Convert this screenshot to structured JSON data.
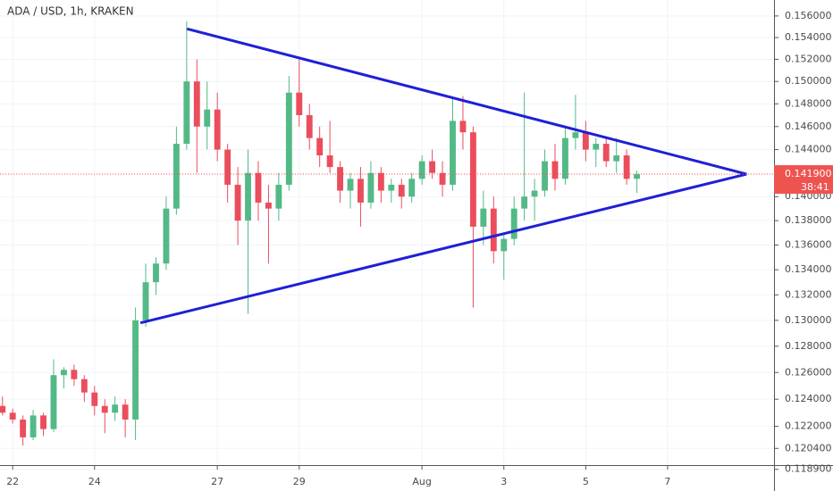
{
  "chart_data": {
    "type": "candlestick",
    "title": "ADA / USD, 1h, KRAKEN",
    "log_scale": true,
    "grid": true,
    "up_color": "#53b987",
    "down_color": "#eb4d5c",
    "x": [
      -0.25,
      0,
      0.25,
      0.5,
      0.75,
      1,
      1.25,
      1.5,
      1.75,
      2,
      2.25,
      2.5,
      2.75,
      3,
      3.25,
      3.5,
      3.75,
      4,
      4.25,
      4.5,
      4.75,
      5,
      5.25,
      5.5,
      5.75,
      6,
      6.25,
      6.5,
      6.75,
      7,
      7.25,
      7.5,
      7.75,
      8,
      8.25,
      8.5,
      8.75,
      9,
      9.25,
      9.5,
      9.75,
      10,
      10.25,
      10.5,
      10.75,
      11,
      11.25,
      11.5,
      11.75,
      12,
      12.25,
      12.5,
      12.75,
      13,
      13.25,
      13.5,
      13.75,
      14,
      14.25,
      14.5,
      14.75,
      15,
      15.25
    ],
    "open": [
      0.1235,
      0.123,
      0.1225,
      0.1212,
      0.1228,
      0.1218,
      0.1258,
      0.1262,
      0.1255,
      0.1245,
      0.1235,
      0.123,
      0.1236,
      0.1225,
      0.13,
      0.133,
      0.1345,
      0.139,
      0.1445,
      0.15,
      0.146,
      0.1475,
      0.144,
      0.141,
      0.138,
      0.142,
      0.1395,
      0.139,
      0.141,
      0.149,
      0.147,
      0.145,
      0.1435,
      0.1425,
      0.1405,
      0.1415,
      0.1395,
      0.142,
      0.1405,
      0.141,
      0.14,
      0.1415,
      0.143,
      0.142,
      0.141,
      0.1465,
      0.1455,
      0.1375,
      0.139,
      0.1355,
      0.1365,
      0.139,
      0.14,
      0.1405,
      0.143,
      0.1415,
      0.145,
      0.1455,
      0.144,
      0.1445,
      0.143,
      0.1435,
      0.1415
    ],
    "high": [
      0.1242,
      0.1233,
      0.1228,
      0.1232,
      0.123,
      0.127,
      0.1264,
      0.1266,
      0.1258,
      0.125,
      0.124,
      0.1242,
      0.124,
      0.131,
      0.1345,
      0.135,
      0.14,
      0.146,
      0.1555,
      0.152,
      0.15,
      0.149,
      0.1445,
      0.1425,
      0.144,
      0.143,
      0.141,
      0.142,
      0.1505,
      0.152,
      0.148,
      0.146,
      0.1465,
      0.143,
      0.142,
      0.1425,
      0.143,
      0.1425,
      0.1415,
      0.1415,
      0.142,
      0.1435,
      0.144,
      0.143,
      0.1485,
      0.1487,
      0.146,
      0.1405,
      0.14,
      0.137,
      0.14,
      0.149,
      0.1415,
      0.144,
      0.1445,
      0.146,
      0.1488,
      0.1465,
      0.145,
      0.145,
      0.145,
      0.144,
      0.1422
    ],
    "low": [
      0.1228,
      0.1222,
      0.1206,
      0.121,
      0.1213,
      0.1216,
      0.1248,
      0.125,
      0.1238,
      0.1228,
      0.1215,
      0.1224,
      0.1212,
      0.121,
      0.1295,
      0.132,
      0.134,
      0.1385,
      0.144,
      0.142,
      0.144,
      0.143,
      0.1395,
      0.136,
      0.1305,
      0.138,
      0.1345,
      0.138,
      0.1405,
      0.146,
      0.144,
      0.1425,
      0.142,
      0.1395,
      0.139,
      0.1375,
      0.139,
      0.1395,
      0.1395,
      0.139,
      0.1395,
      0.141,
      0.1415,
      0.14,
      0.1405,
      0.144,
      0.131,
      0.136,
      0.1345,
      0.1332,
      0.136,
      0.138,
      0.138,
      0.14,
      0.1405,
      0.141,
      0.144,
      0.143,
      0.1425,
      0.1425,
      0.142,
      0.141,
      0.1403
    ],
    "close": [
      0.123,
      0.1225,
      0.1212,
      0.1228,
      0.1218,
      0.1258,
      0.1262,
      0.1255,
      0.1245,
      0.1235,
      0.123,
      0.1236,
      0.1225,
      0.13,
      0.133,
      0.1345,
      0.139,
      0.1445,
      0.15,
      0.146,
      0.1475,
      0.144,
      0.141,
      0.138,
      0.142,
      0.1395,
      0.139,
      0.141,
      0.149,
      0.147,
      0.145,
      0.1435,
      0.1425,
      0.1405,
      0.1415,
      0.1395,
      0.142,
      0.1405,
      0.141,
      0.14,
      0.1415,
      0.143,
      0.142,
      0.141,
      0.1465,
      0.1455,
      0.1375,
      0.139,
      0.1355,
      0.1365,
      0.139,
      0.14,
      0.1405,
      0.143,
      0.1415,
      0.145,
      0.1455,
      0.144,
      0.1445,
      0.143,
      0.1435,
      0.1415,
      0.1419
    ],
    "xlim": [
      -0.31,
      18.6
    ],
    "xticks": [
      {
        "value": 0,
        "label": "22"
      },
      {
        "value": 2,
        "label": "24"
      },
      {
        "value": 5,
        "label": "27"
      },
      {
        "value": 7,
        "label": "29"
      },
      {
        "value": 10,
        "label": "Aug"
      },
      {
        "value": 12,
        "label": "3"
      },
      {
        "value": 14,
        "label": "5"
      },
      {
        "value": 16,
        "label": "7"
      }
    ],
    "ylim": [
      0.1192,
      0.1575
    ],
    "yticks": [
      {
        "value": 0.156,
        "label": "0.156000"
      },
      {
        "value": 0.154,
        "label": "0.154000"
      },
      {
        "value": 0.152,
        "label": "0.152000"
      },
      {
        "value": 0.15,
        "label": "0.150000"
      },
      {
        "value": 0.148,
        "label": "0.148000"
      },
      {
        "value": 0.146,
        "label": "0.146000"
      },
      {
        "value": 0.144,
        "label": "0.144000"
      },
      {
        "value": 0.14,
        "label": "0.140000"
      },
      {
        "value": 0.138,
        "label": "0.138000"
      },
      {
        "value": 0.136,
        "label": "0.136000"
      },
      {
        "value": 0.134,
        "label": "0.134000"
      },
      {
        "value": 0.132,
        "label": "0.132000"
      },
      {
        "value": 0.13,
        "label": "0.130000"
      },
      {
        "value": 0.128,
        "label": "0.128000"
      },
      {
        "value": 0.126,
        "label": "0.126000"
      },
      {
        "value": 0.124,
        "label": "0.124000"
      },
      {
        "value": 0.122,
        "label": "0.122000"
      },
      {
        "value": 0.1204,
        "label": "0.120400"
      },
      {
        "value": 0.1189,
        "label": "0.118900"
      }
    ],
    "last_price": {
      "value": 0.1419,
      "label": "0.141900",
      "countdown": "38:41",
      "color": "#ef5350"
    },
    "drawings": [
      {
        "color": "#1f1fd6",
        "x": [
          4.26,
          17.93
        ],
        "y": [
          0.1548,
          0.1419
        ]
      },
      {
        "color": "#1f1fd6",
        "x": [
          3.12,
          17.93
        ],
        "y": [
          0.1298,
          0.1419
        ]
      }
    ]
  }
}
